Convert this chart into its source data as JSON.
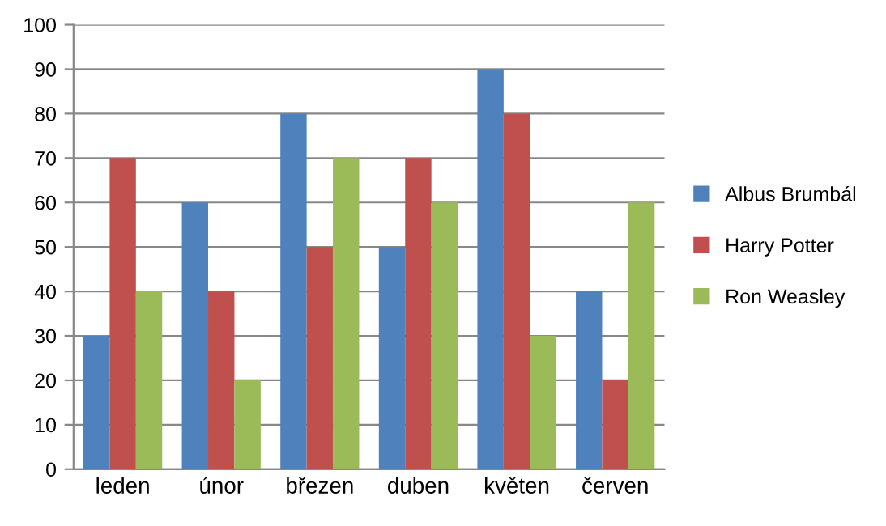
{
  "chart_data": {
    "type": "bar",
    "categories": [
      "leden",
      "únor",
      "březen",
      "duben",
      "květen",
      "červen"
    ],
    "series": [
      {
        "name": "Albus Brumbál",
        "color": "#4f81bd",
        "values": [
          30,
          60,
          80,
          50,
          90,
          40
        ]
      },
      {
        "name": "Harry Potter",
        "color": "#c0504d",
        "values": [
          70,
          40,
          50,
          70,
          80,
          20
        ]
      },
      {
        "name": "Ron Weasley",
        "color": "#9bbb59",
        "values": [
          40,
          20,
          70,
          60,
          30,
          60
        ]
      }
    ],
    "ylim": [
      0,
      100
    ],
    "yticks": [
      0,
      10,
      20,
      30,
      40,
      50,
      60,
      70,
      80,
      90,
      100
    ],
    "grid": "y",
    "legend": "right"
  }
}
